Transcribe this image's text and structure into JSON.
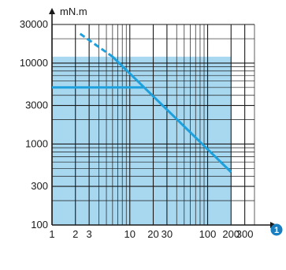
{
  "chart_data": {
    "type": "line",
    "title": "",
    "xlabel": "",
    "ylabel": "mN.m",
    "x_scale": "log",
    "y_scale": "log",
    "xlim": [
      1,
      400
    ],
    "ylim": [
      100,
      30000
    ],
    "x_ticks": [
      {
        "value": 1,
        "label": "1"
      },
      {
        "value": 2,
        "label": "2"
      },
      {
        "value": 3,
        "label": "3"
      },
      {
        "value": 10,
        "label": "10"
      },
      {
        "value": 20,
        "label": "20"
      },
      {
        "value": 30,
        "label": "30"
      },
      {
        "value": 100,
        "label": "100"
      },
      {
        "value": 200,
        "label": "200"
      },
      {
        "value": 300,
        "label": "300"
      }
    ],
    "y_ticks": [
      {
        "value": 100,
        "label": "100"
      },
      {
        "value": 300,
        "label": "300"
      },
      {
        "value": 1000,
        "label": "1000"
      },
      {
        "value": 3000,
        "label": "3000"
      },
      {
        "value": 10000,
        "label": "10000"
      },
      {
        "value": 30000,
        "label": "30000"
      }
    ],
    "grid": true,
    "x_axis_marker": "1",
    "area": {
      "x_range": [
        1,
        200
      ],
      "y_range": [
        100,
        12000
      ],
      "color": "#a8d8f0"
    },
    "series": [
      {
        "style": "dashed",
        "color": "#1ea0dc",
        "points": [
          [
            2.3,
            23000
          ],
          [
            6,
            12000
          ]
        ]
      },
      {
        "style": "solid",
        "color": "#1ea0dc",
        "points": [
          [
            6,
            12000
          ],
          [
            200,
            450
          ]
        ]
      },
      {
        "style": "solid",
        "color": "#1ea0dc",
        "points": [
          [
            1,
            5000
          ],
          [
            15,
            5000
          ]
        ]
      }
    ],
    "colors": {
      "grid": "#1a1a1a",
      "line": "#1ea0dc",
      "fill": "#a8d8f0",
      "marker": "#1a7fc1"
    }
  }
}
